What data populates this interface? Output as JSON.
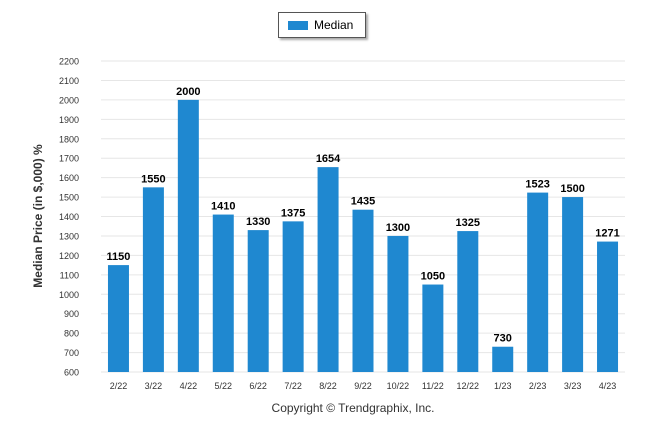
{
  "legend": {
    "label": "Median",
    "color": "#1f88d0"
  },
  "footer": {
    "text": "Copyright © Trendgraphix, Inc."
  },
  "chart_data": {
    "type": "bar",
    "title": "",
    "xlabel": "",
    "ylabel": "Median Price (in $,000) %",
    "ylim": [
      600,
      2200
    ],
    "yticks": [
      600,
      700,
      800,
      900,
      1000,
      1100,
      1200,
      1300,
      1400,
      1500,
      1600,
      1700,
      1800,
      1900,
      2000,
      2100,
      2200
    ],
    "grid": true,
    "legend_position": "top",
    "bar_color": "#1f88d0",
    "categories": [
      "2/22",
      "3/22",
      "4/22",
      "5/22",
      "6/22",
      "7/22",
      "8/22",
      "9/22",
      "10/22",
      "11/22",
      "12/22",
      "1/23",
      "2/23",
      "3/23",
      "4/23"
    ],
    "series": [
      {
        "name": "Median",
        "values": [
          1150,
          1550,
          2000,
          1410,
          1330,
          1375,
          1654,
          1435,
          1300,
          1050,
          1325,
          730,
          1523,
          1500,
          1271
        ]
      }
    ]
  }
}
